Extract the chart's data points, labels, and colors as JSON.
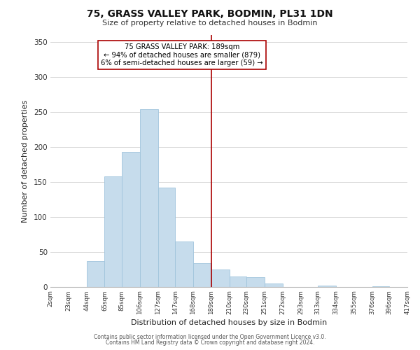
{
  "title1": "75, GRASS VALLEY PARK, BODMIN, PL31 1DN",
  "title2": "Size of property relative to detached houses in Bodmin",
  "xlabel": "Distribution of detached houses by size in Bodmin",
  "ylabel": "Number of detached properties",
  "footer1": "Contains HM Land Registry data © Crown copyright and database right 2024.",
  "footer2": "Contains public sector information licensed under the Open Government Licence v3.0.",
  "bar_color": "#c6dcec",
  "bar_edge_color": "#a0c4dc",
  "vline_value": 189,
  "vline_color": "#aa0000",
  "annotation_title": "75 GRASS VALLEY PARK: 189sqm",
  "annotation_line1": "← 94% of detached houses are smaller (879)",
  "annotation_line2": "6% of semi-detached houses are larger (59) →",
  "bins": [
    2,
    23,
    44,
    65,
    85,
    106,
    127,
    147,
    168,
    189,
    210,
    230,
    251,
    272,
    293,
    313,
    334,
    355,
    376,
    396,
    417
  ],
  "counts": [
    0,
    0,
    37,
    158,
    193,
    254,
    142,
    65,
    34,
    25,
    15,
    14,
    5,
    0,
    0,
    2,
    0,
    0,
    1,
    0
  ],
  "ylim": [
    0,
    360
  ],
  "yticks": [
    0,
    50,
    100,
    150,
    200,
    250,
    300,
    350
  ],
  "bg_color": "#ffffff",
  "grid_color": "#d0d0d0"
}
